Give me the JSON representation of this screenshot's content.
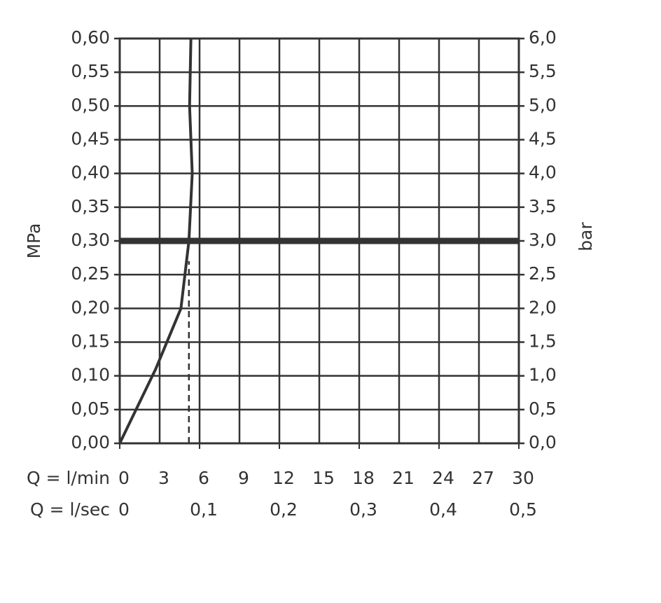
{
  "chart_data": {
    "type": "line",
    "y_label": "MPa",
    "y2_label": "bar",
    "x_label": "Q = l/min",
    "x2_label": "Q = l/sec",
    "xlim": [
      0,
      30
    ],
    "xticks": [
      0,
      3,
      6,
      9,
      12,
      15,
      18,
      21,
      24,
      27,
      30
    ],
    "x2lim": [
      0,
      0.5
    ],
    "x2ticks": [
      0,
      {
        "value": 0.1,
        "label": "0,1"
      },
      {
        "value": 0.2,
        "label": "0,2"
      },
      {
        "value": 0.3,
        "label": "0,3"
      },
      {
        "value": 0.4,
        "label": "0,4"
      },
      {
        "value": 0.5,
        "label": "0,5"
      }
    ],
    "ylim": [
      0,
      0.6
    ],
    "yticks": [
      {
        "value": 0,
        "label": "0,00"
      },
      {
        "value": 0.05,
        "label": "0,05"
      },
      {
        "value": 0.1,
        "label": "0,10"
      },
      {
        "value": 0.15,
        "label": "0,15"
      },
      {
        "value": 0.2,
        "label": "0,20"
      },
      {
        "value": 0.25,
        "label": "0,25"
      },
      {
        "value": 0.3,
        "label": "0,30"
      },
      {
        "value": 0.35,
        "label": "0,35"
      },
      {
        "value": 0.4,
        "label": "0,40"
      },
      {
        "value": 0.45,
        "label": "0,45"
      },
      {
        "value": 0.5,
        "label": "0,50"
      },
      {
        "value": 0.55,
        "label": "0,55"
      },
      {
        "value": 0.6,
        "label": "0,60"
      }
    ],
    "y2lim": [
      0,
      6
    ],
    "y2ticks": [
      {
        "value": 0,
        "label": "0,0"
      },
      {
        "value": 0.5,
        "label": "0,5"
      },
      {
        "value": 1,
        "label": "1,0"
      },
      {
        "value": 1.5,
        "label": "1,5"
      },
      {
        "value": 2,
        "label": "2,0"
      },
      {
        "value": 2.5,
        "label": "2,5"
      },
      {
        "value": 3,
        "label": "3,0"
      },
      {
        "value": 3.5,
        "label": "3,5"
      },
      {
        "value": 4,
        "label": "4,0"
      },
      {
        "value": 4.5,
        "label": "4,5"
      },
      {
        "value": 5,
        "label": "5,0"
      },
      {
        "value": 5.5,
        "label": "5,5"
      },
      {
        "value": 6,
        "label": "6,0"
      }
    ],
    "grid": true,
    "series": [
      {
        "color": "#333333",
        "x": [
          0,
          2.7,
          4.6,
          5.2,
          5.45,
          5.25,
          5.35
        ],
        "values": [
          0,
          0.11,
          0.2,
          0.3,
          0.4,
          0.5,
          0.6
        ]
      }
    ],
    "hlines": [
      {
        "value": 0.3
      }
    ],
    "vlines": [
      {
        "value": 5.2,
        "ymax": 0.27
      }
    ]
  }
}
